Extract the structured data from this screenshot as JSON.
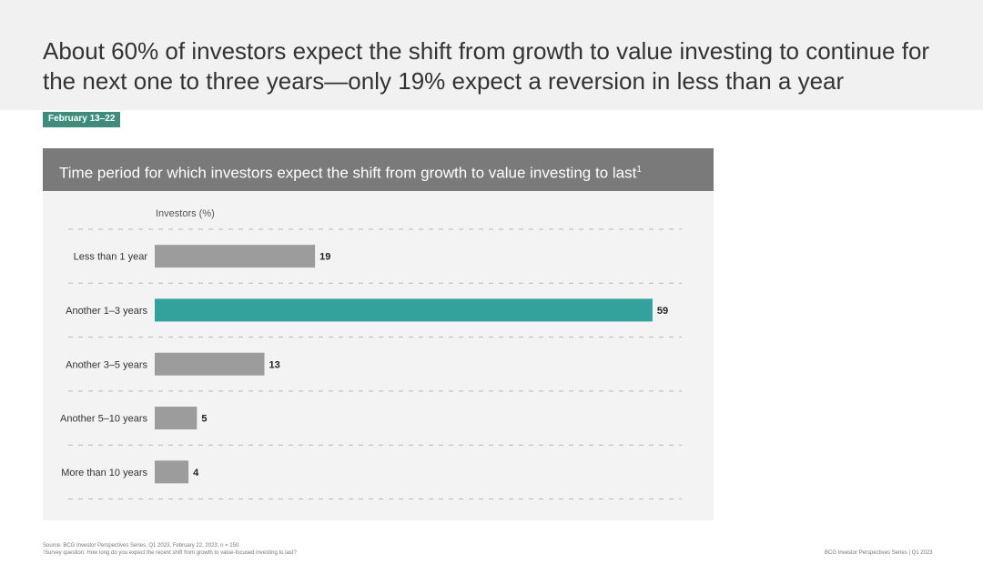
{
  "headline": "About 60% of investors expect the shift from growth to value investing to continue for the next one to three years—only 19% expect a reversion in less than a year",
  "date_badge": "February 13–22",
  "chart_title": "Time period for which investors expect the shift from growth to value investing to last",
  "chart_title_footnote_mark": "1",
  "colors": {
    "highlight": "#33a19c",
    "bar": "#9c9c9c",
    "badge": "#3d8c7c",
    "title_bar": "#7a7a7a"
  },
  "chart_data": {
    "type": "bar",
    "orientation": "horizontal",
    "xlabel": "Investors (%)",
    "categories": [
      "Less than 1 year",
      "Another 1–3 years",
      "Another 3–5 years",
      "Another 5–10 years",
      "More than 10 years"
    ],
    "values": [
      19,
      59,
      13,
      5,
      4
    ],
    "highlight_index": 1,
    "xlim": [
      0,
      60
    ],
    "data_labels": true,
    "grid": "dashed horizontal separators"
  },
  "footnotes": {
    "source": "Source: BCG Investor Perspectives Series, Q1 2023, February 22, 2023; n = 150.",
    "question": "¹Survey question: How long do you expect the recent shift from growth to value-focused investing to last?"
  },
  "footer_right": "BCG Investor Perspectives Series | Q1 2023"
}
